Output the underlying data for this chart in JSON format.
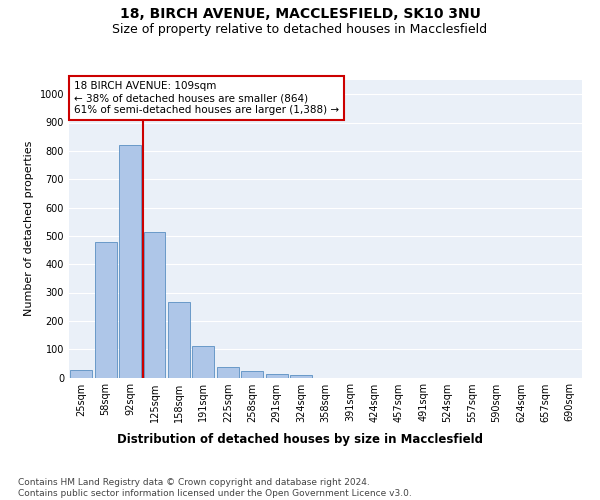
{
  "title1": "18, BIRCH AVENUE, MACCLESFIELD, SK10 3NU",
  "title2": "Size of property relative to detached houses in Macclesfield",
  "xlabel": "Distribution of detached houses by size in Macclesfield",
  "ylabel": "Number of detached properties",
  "categories": [
    "25sqm",
    "58sqm",
    "92sqm",
    "125sqm",
    "158sqm",
    "191sqm",
    "225sqm",
    "258sqm",
    "291sqm",
    "324sqm",
    "358sqm",
    "391sqm",
    "424sqm",
    "457sqm",
    "491sqm",
    "524sqm",
    "557sqm",
    "590sqm",
    "624sqm",
    "657sqm",
    "690sqm"
  ],
  "values": [
    28,
    478,
    820,
    515,
    265,
    110,
    36,
    22,
    13,
    8,
    0,
    0,
    0,
    0,
    0,
    0,
    0,
    0,
    0,
    0,
    0
  ],
  "bar_color": "#aec6e8",
  "bar_edge_color": "#5a8fc2",
  "vline_color": "#cc0000",
  "annotation_text": "18 BIRCH AVENUE: 109sqm\n← 38% of detached houses are smaller (864)\n61% of semi-detached houses are larger (1,388) →",
  "annotation_box_color": "#ffffff",
  "annotation_box_edge": "#cc0000",
  "ylim": [
    0,
    1050
  ],
  "yticks": [
    0,
    100,
    200,
    300,
    400,
    500,
    600,
    700,
    800,
    900,
    1000
  ],
  "bg_color": "#eaf0f8",
  "footnote": "Contains HM Land Registry data © Crown copyright and database right 2024.\nContains public sector information licensed under the Open Government Licence v3.0.",
  "title1_fontsize": 10,
  "title2_fontsize": 9,
  "xlabel_fontsize": 8.5,
  "ylabel_fontsize": 8,
  "annotation_fontsize": 7.5,
  "footnote_fontsize": 6.5,
  "tick_fontsize": 7
}
